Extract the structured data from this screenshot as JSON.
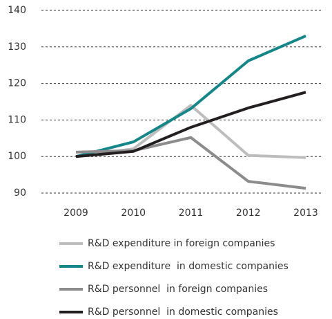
{
  "chart_data": {
    "type": "line",
    "categories": [
      "2009",
      "2010",
      "2011",
      "2012",
      "2013"
    ],
    "series": [
      {
        "name": "R&D expenditure in foreign companies",
        "color": "#bdbdbd",
        "values": [
          100,
          102.1,
          114,
          100.3,
          99.7
        ]
      },
      {
        "name": "R&D expenditure  in domestic companies",
        "color": "#13878a",
        "values": [
          100,
          104,
          113.1,
          126.2,
          133
        ]
      },
      {
        "name": "R&D personnel  in foreign companies",
        "color": "#8c8c8c",
        "values": [
          101.2,
          101.6,
          105.2,
          93.2,
          91.3
        ]
      },
      {
        "name": "R&D personnel  in domestic companies",
        "color": "#231f20",
        "values": [
          100,
          101.4,
          108,
          113.3,
          117.6
        ]
      }
    ],
    "ylim": [
      90,
      140
    ],
    "yticks": [
      90,
      100,
      110,
      120,
      130,
      140
    ],
    "grid": true
  }
}
